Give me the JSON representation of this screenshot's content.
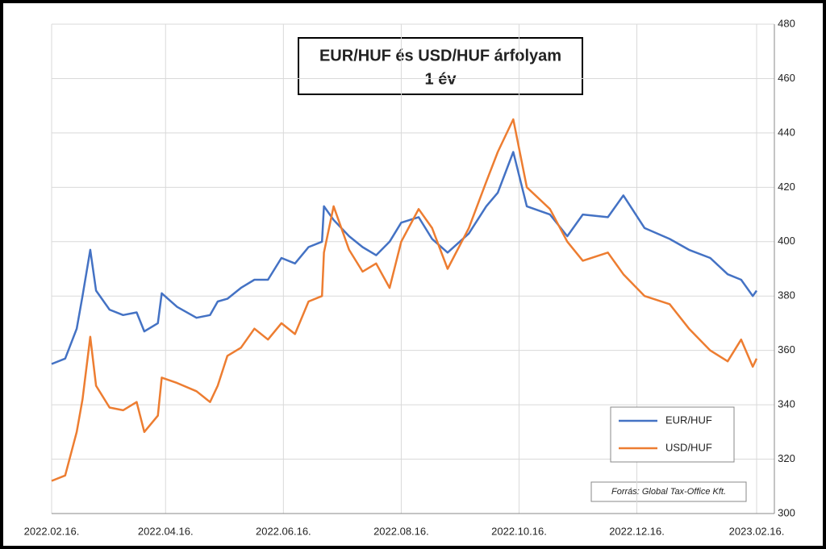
{
  "chart_data": {
    "type": "line",
    "title": "EUR/HUF és USD/HUF árfolyam",
    "subtitle": "1 év",
    "annotation": "Forrás: Global Tax-Office Kft.",
    "x": [
      "2022.02.16.",
      "2022.02.23.",
      "2022.03.01.",
      "2022.03.04.",
      "2022.03.08.",
      "2022.03.11.",
      "2022.03.18.",
      "2022.03.25.",
      "2022.04.01.",
      "2022.04.05.",
      "2022.04.12.",
      "2022.04.14.",
      "2022.04.22.",
      "2022.05.02.",
      "2022.05.09.",
      "2022.05.13.",
      "2022.05.18.",
      "2022.05.25.",
      "2022.06.01.",
      "2022.06.08.",
      "2022.06.15.",
      "2022.06.22.",
      "2022.06.29.",
      "2022.07.06.",
      "2022.07.07.",
      "2022.07.12.",
      "2022.07.20.",
      "2022.07.27.",
      "2022.08.03.",
      "2022.08.10.",
      "2022.08.16.",
      "2022.08.25.",
      "2022.09.01.",
      "2022.09.09.",
      "2022.09.20.",
      "2022.09.29.",
      "2022.10.05.",
      "2022.10.13.",
      "2022.10.20.",
      "2022.11.01.",
      "2022.11.10.",
      "2022.11.18.",
      "2022.12.01.",
      "2022.12.09.",
      "2022.12.20.",
      "2023.01.02.",
      "2023.01.12.",
      "2023.01.23.",
      "2023.02.01.",
      "2023.02.08.",
      "2023.02.14.",
      "2023.02.16."
    ],
    "series": [
      {
        "name": "EUR/HUF",
        "color": "#4472c4",
        "values": [
          355,
          357,
          368,
          380,
          397,
          382,
          375,
          373,
          374,
          367,
          370,
          381,
          376,
          372,
          373,
          378,
          379,
          383,
          386,
          386,
          394,
          392,
          398,
          400,
          413,
          408,
          402,
          398,
          395,
          400,
          407,
          409,
          401,
          396,
          403,
          413,
          418,
          433,
          413,
          410,
          402,
          410,
          409,
          417,
          405,
          401,
          397,
          394,
          388,
          386,
          380,
          382
        ]
      },
      {
        "name": "USD/HUF",
        "color": "#ed7d31",
        "values": [
          312,
          314,
          330,
          342,
          365,
          347,
          339,
          338,
          341,
          330,
          336,
          350,
          348,
          345,
          341,
          347,
          358,
          361,
          368,
          364,
          370,
          366,
          378,
          380,
          396,
          413,
          397,
          389,
          392,
          383,
          400,
          412,
          405,
          390,
          405,
          422,
          433,
          445,
          420,
          412,
          400,
          393,
          396,
          388,
          380,
          377,
          368,
          360,
          356,
          364,
          354,
          357
        ]
      }
    ],
    "xlim": [
      "2022.02.16.",
      "2023.02.16."
    ],
    "xticks": [
      "2022.02.16.",
      "2022.04.16.",
      "2022.06.16.",
      "2022.08.16.",
      "2022.10.16.",
      "2022.12.16.",
      "2023.02.16."
    ],
    "ylim": [
      300,
      480
    ],
    "yticks": [
      300,
      320,
      340,
      360,
      380,
      400,
      420,
      440,
      460,
      480
    ],
    "grid": true,
    "legend": "lower right"
  }
}
